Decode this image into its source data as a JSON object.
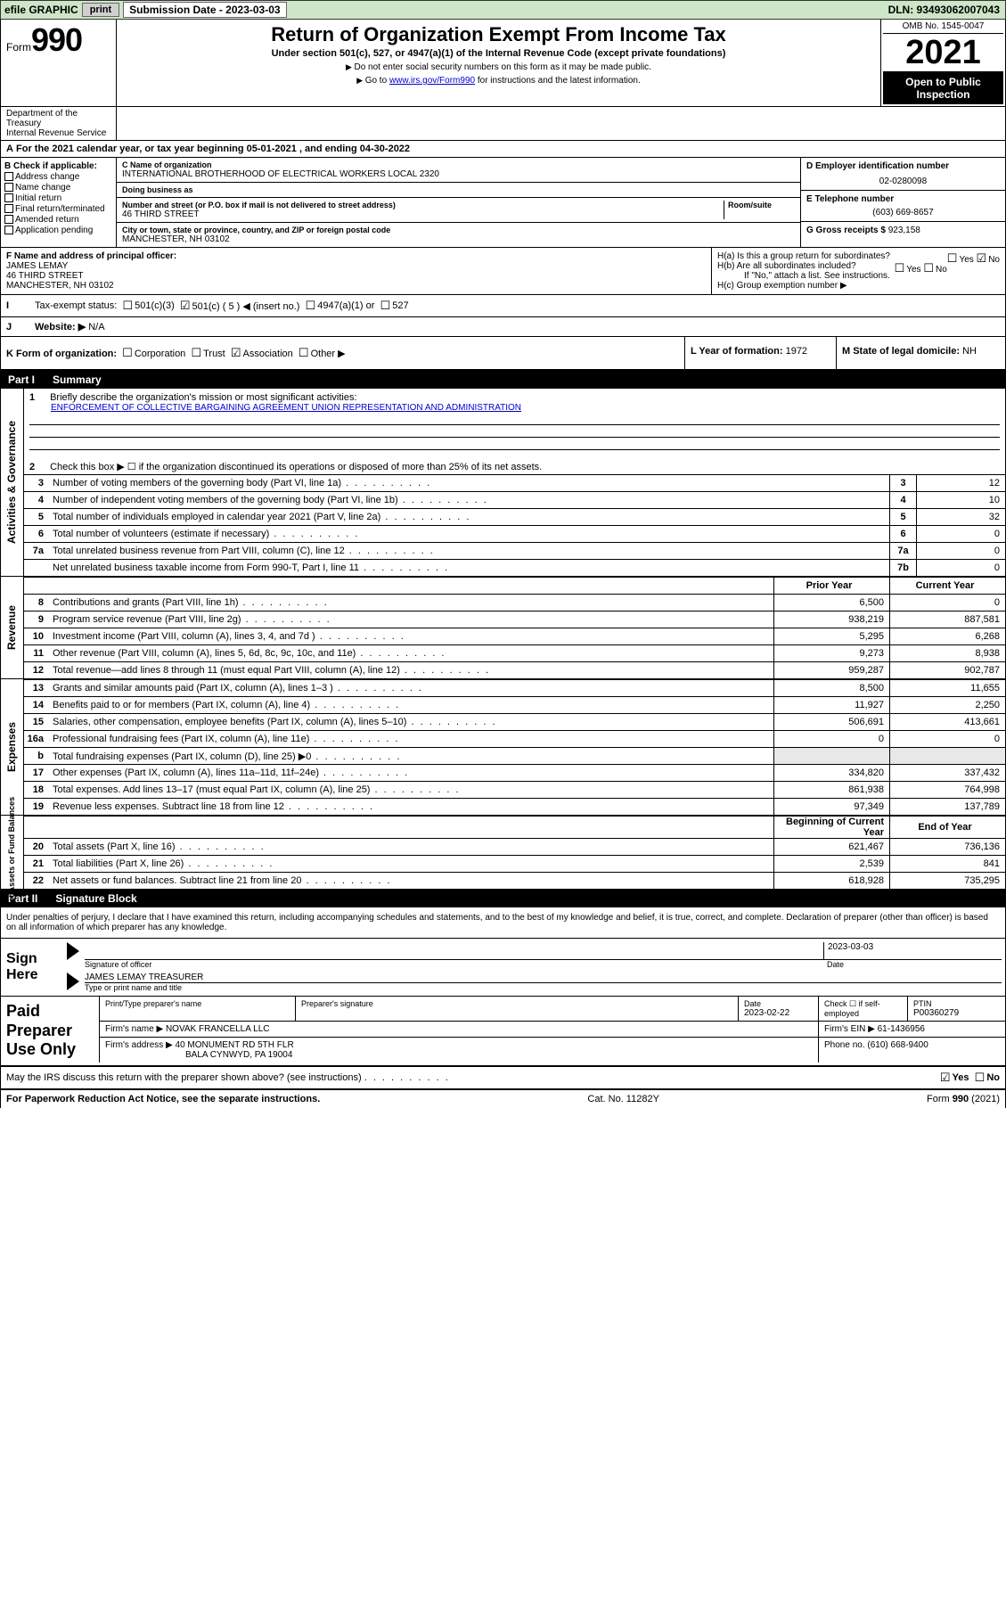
{
  "top_bar": {
    "efile": "efile GRAPHIC",
    "print": "print",
    "sub_label": "Submission Date - ",
    "sub_date": "2023-03-03",
    "dln": "DLN: 93493062007043"
  },
  "header": {
    "form_word": "Form",
    "form_num": "990",
    "title": "Return of Organization Exempt From Income Tax",
    "subtitle": "Under section 501(c), 527, or 4947(a)(1) of the Internal Revenue Code (except private foundations)",
    "note1": "Do not enter social security numbers on this form as it may be made public.",
    "note2_pre": "Go to ",
    "note2_link": "www.irs.gov/Form990",
    "note2_post": " for instructions and the latest information.",
    "omb": "OMB No. 1545-0047",
    "year": "2021",
    "inspect": "Open to Public Inspection",
    "dept": "Department of the Treasury\nInternal Revenue Service"
  },
  "row_a": "For the 2021 calendar year, or tax year beginning 05-01-2021   , and ending 04-30-2022",
  "section_b": {
    "header": "B Check if applicable:",
    "items": [
      "Address change",
      "Name change",
      "Initial return",
      "Final return/terminated",
      "Amended return",
      "Application pending"
    ]
  },
  "section_c": {
    "name_lbl": "C Name of organization",
    "name": "INTERNATIONAL BROTHERHOOD OF ELECTRICAL WORKERS LOCAL 2320",
    "dba_lbl": "Doing business as",
    "addr_lbl": "Number and street (or P.O. box if mail is not delivered to street address)",
    "room_lbl": "Room/suite",
    "addr": "46 THIRD STREET",
    "city_lbl": "City or town, state or province, country, and ZIP or foreign postal code",
    "city": "MANCHESTER, NH  03102"
  },
  "section_d": {
    "ein_lbl": "D Employer identification number",
    "ein": "02-0280098",
    "tel_lbl": "E Telephone number",
    "tel": "(603) 669-8657",
    "gross_lbl": "G Gross receipts $",
    "gross": "923,158"
  },
  "section_f": {
    "lbl": "F  Name and address of principal officer:",
    "name": "JAMES LEMAY",
    "addr1": "46 THIRD STREET",
    "addr2": "MANCHESTER, NH  03102"
  },
  "section_h": {
    "ha": "H(a)  Is this a group return for subordinates?",
    "hb": "H(b)  Are all subordinates included?",
    "hb_note": "If \"No,\" attach a list. See instructions.",
    "hc": "H(c)  Group exemption number ▶",
    "yes": "Yes",
    "no": "No"
  },
  "row_i": {
    "lbl": "Tax-exempt status:",
    "o1": "501(c)(3)",
    "o2": "501(c) ( 5 ) ◀ (insert no.)",
    "o3": "4947(a)(1) or",
    "o4": "527"
  },
  "row_j": {
    "lbl": "Website: ▶",
    "val": "N/A"
  },
  "row_k": {
    "lbl": "K Form of organization:",
    "o1": "Corporation",
    "o2": "Trust",
    "o3": "Association",
    "o4": "Other ▶"
  },
  "row_l": {
    "lbl": "L Year of formation:",
    "val": "1972"
  },
  "row_m": {
    "lbl": "M State of legal domicile:",
    "val": "NH"
  },
  "part1": {
    "title": "Part I",
    "name": "Summary",
    "q1": "Briefly describe the organization's mission or most significant activities:",
    "mission": "ENFORCEMENT OF COLLECTIVE BARGAINING AGREEMENT UNION REPRESENTATION AND ADMINISTRATION",
    "q2": "Check this box ▶ ☐  if the organization discontinued its operations or disposed of more than 25% of its net assets.",
    "side_a": "Activities & Governance",
    "side_r": "Revenue",
    "side_e": "Expenses",
    "side_n": "Net Assets or Fund Balances",
    "hdr_prior": "Prior Year",
    "hdr_curr": "Current Year",
    "hdr_boy": "Beginning of Current Year",
    "hdr_eoy": "End of Year",
    "lines_gov": [
      {
        "n": "3",
        "d": "Number of voting members of the governing body (Part VI, line 1a)",
        "box": "3",
        "v": "12"
      },
      {
        "n": "4",
        "d": "Number of independent voting members of the governing body (Part VI, line 1b)",
        "box": "4",
        "v": "10"
      },
      {
        "n": "5",
        "d": "Total number of individuals employed in calendar year 2021 (Part V, line 2a)",
        "box": "5",
        "v": "32"
      },
      {
        "n": "6",
        "d": "Total number of volunteers (estimate if necessary)",
        "box": "6",
        "v": "0"
      },
      {
        "n": "7a",
        "d": "Total unrelated business revenue from Part VIII, column (C), line 12",
        "box": "7a",
        "v": "0"
      },
      {
        "n": "",
        "d": "Net unrelated business taxable income from Form 990-T, Part I, line 11",
        "box": "7b",
        "v": "0"
      }
    ],
    "lines_rev": [
      {
        "n": "8",
        "d": "Contributions and grants (Part VIII, line 1h)",
        "p": "6,500",
        "c": "0"
      },
      {
        "n": "9",
        "d": "Program service revenue (Part VIII, line 2g)",
        "p": "938,219",
        "c": "887,581"
      },
      {
        "n": "10",
        "d": "Investment income (Part VIII, column (A), lines 3, 4, and 7d )",
        "p": "5,295",
        "c": "6,268"
      },
      {
        "n": "11",
        "d": "Other revenue (Part VIII, column (A), lines 5, 6d, 8c, 9c, 10c, and 11e)",
        "p": "9,273",
        "c": "8,938"
      },
      {
        "n": "12",
        "d": "Total revenue—add lines 8 through 11 (must equal Part VIII, column (A), line 12)",
        "p": "959,287",
        "c": "902,787"
      }
    ],
    "lines_exp": [
      {
        "n": "13",
        "d": "Grants and similar amounts paid (Part IX, column (A), lines 1–3 )",
        "p": "8,500",
        "c": "11,655"
      },
      {
        "n": "14",
        "d": "Benefits paid to or for members (Part IX, column (A), line 4)",
        "p": "11,927",
        "c": "2,250"
      },
      {
        "n": "15",
        "d": "Salaries, other compensation, employee benefits (Part IX, column (A), lines 5–10)",
        "p": "506,691",
        "c": "413,661"
      },
      {
        "n": "16a",
        "d": "Professional fundraising fees (Part IX, column (A), line 11e)",
        "p": "0",
        "c": "0"
      },
      {
        "n": "b",
        "d": "Total fundraising expenses (Part IX, column (D), line 25) ▶0",
        "p": "",
        "c": "",
        "shade": true
      },
      {
        "n": "17",
        "d": "Other expenses (Part IX, column (A), lines 11a–11d, 11f–24e)",
        "p": "334,820",
        "c": "337,432"
      },
      {
        "n": "18",
        "d": "Total expenses. Add lines 13–17 (must equal Part IX, column (A), line 25)",
        "p": "861,938",
        "c": "764,998"
      },
      {
        "n": "19",
        "d": "Revenue less expenses. Subtract line 18 from line 12",
        "p": "97,349",
        "c": "137,789"
      }
    ],
    "lines_net": [
      {
        "n": "20",
        "d": "Total assets (Part X, line 16)",
        "p": "621,467",
        "c": "736,136"
      },
      {
        "n": "21",
        "d": "Total liabilities (Part X, line 26)",
        "p": "2,539",
        "c": "841"
      },
      {
        "n": "22",
        "d": "Net assets or fund balances. Subtract line 21 from line 20",
        "p": "618,928",
        "c": "735,295"
      }
    ]
  },
  "part2": {
    "title": "Part II",
    "name": "Signature Block",
    "decl": "Under penalties of perjury, I declare that I have examined this return, including accompanying schedules and statements, and to the best of my knowledge and belief, it is true, correct, and complete. Declaration of preparer (other than officer) is based on all information of which preparer has any knowledge.",
    "sign_here": "Sign Here",
    "sig_officer": "Signature of officer",
    "sig_date_lbl": "Date",
    "sig_date": "2023-03-03",
    "sig_name": "JAMES LEMAY TREASURER",
    "sig_name_lbl": "Type or print name and title",
    "paid": "Paid Preparer Use Only",
    "p_name_lbl": "Print/Type preparer's name",
    "p_sig_lbl": "Preparer's signature",
    "p_date_lbl": "Date",
    "p_date": "2023-02-22",
    "p_check": "Check ☐ if self-employed",
    "p_ptin_lbl": "PTIN",
    "p_ptin": "P00360279",
    "firm_name_lbl": "Firm's name   ▶",
    "firm_name": "NOVAK FRANCELLA LLC",
    "firm_ein_lbl": "Firm's EIN ▶",
    "firm_ein": "61-1436956",
    "firm_addr_lbl": "Firm's address ▶",
    "firm_addr1": "40 MONUMENT RD 5TH FLR",
    "firm_addr2": "BALA CYNWYD, PA  19004",
    "firm_phone_lbl": "Phone no.",
    "firm_phone": "(610) 668-9400",
    "discuss": "May the IRS discuss this return with the preparer shown above? (see instructions)"
  },
  "footer": {
    "left": "For Paperwork Reduction Act Notice, see the separate instructions.",
    "mid": "Cat. No. 11282Y",
    "right": "Form 990 (2021)"
  }
}
